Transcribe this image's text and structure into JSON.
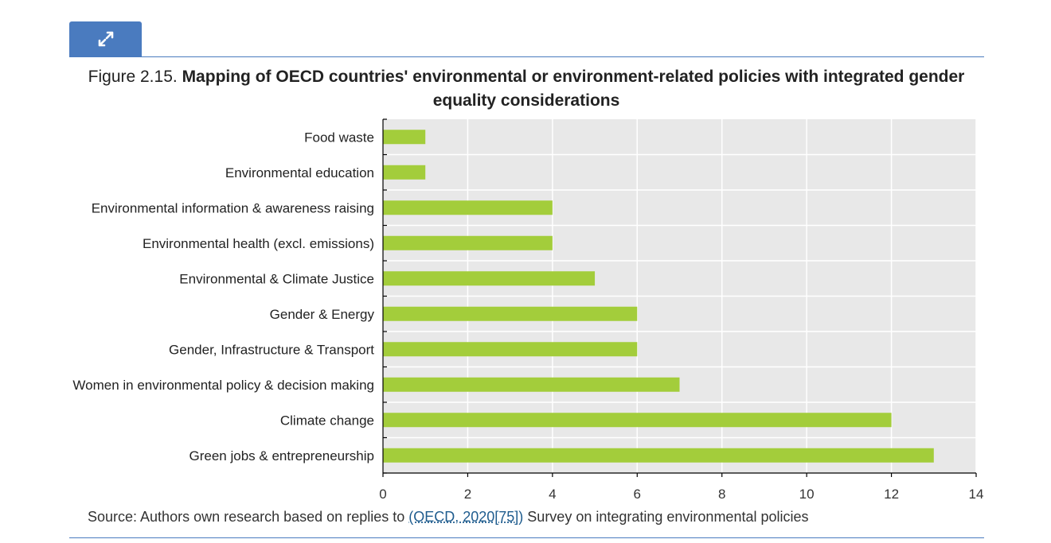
{
  "figure": {
    "label": "Figure 2.15.",
    "title": "Mapping of OECD countries' environmental or environment-related policies with integrated gender equality considerations"
  },
  "expand_button": {
    "icon": "expand-icon"
  },
  "chart_data": {
    "type": "bar",
    "orientation": "horizontal",
    "categories": [
      "Food waste",
      "Environmental education",
      "Environmental information & awareness raising",
      "Environmental health (excl. emissions)",
      "Environmental & Climate Justice",
      "Gender & Energy",
      "Gender, Infrastructure & Transport",
      "Women in environmental policy & decision making",
      "Climate change",
      "Green jobs & entrepreneurship"
    ],
    "values": [
      1,
      1,
      4,
      4,
      5,
      6,
      6,
      7,
      12,
      13
    ],
    "xlim": [
      0,
      14
    ],
    "xticks": [
      0,
      2,
      4,
      6,
      8,
      10,
      12,
      14
    ],
    "grid": true,
    "bar_color": "#a3cd3b",
    "background_color": "#e8e8e8"
  },
  "source": {
    "prefix": "Source: Authors own research based on replies to ",
    "link_text": "(OECD, 2020[75])",
    "suffix": " Survey on integrating environmental policies"
  }
}
